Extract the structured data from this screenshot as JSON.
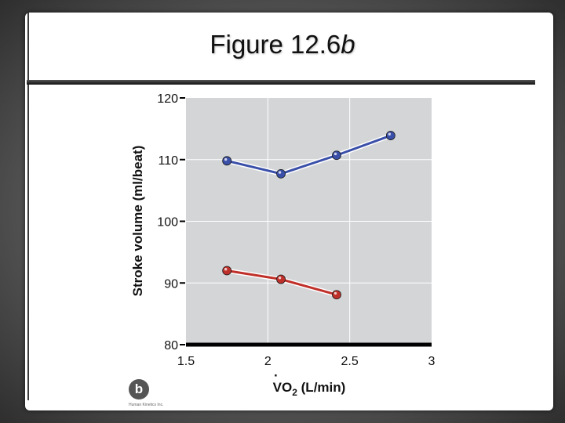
{
  "slide": {
    "title": "Figure 12.6",
    "title_italic": "b"
  },
  "panel": {
    "badge": "b",
    "copyright": "Human Kinetics Inc."
  },
  "chart_data": {
    "type": "line",
    "title": "",
    "xlabel_main": "VO",
    "xlabel_sub": "2",
    "xlabel_rest": " (L/min)",
    "ylabel": "Stroke volume (ml/beat)",
    "xlim": [
      1.5,
      3
    ],
    "ylim": [
      80,
      120
    ],
    "xticks": [
      "1.5",
      "2",
      "2.5",
      "3"
    ],
    "yticks": [
      "80",
      "90",
      "100",
      "110",
      "120"
    ],
    "grid": true,
    "series": [
      {
        "x": [
          1.75,
          2.08,
          2.42,
          2.75
        ],
        "y": [
          109.8,
          107.7,
          110.7,
          113.9
        ],
        "color": "#3a4fa8"
      },
      {
        "x": [
          1.75,
          2.08,
          2.42
        ],
        "y": [
          92.0,
          90.6,
          88.1
        ],
        "color": "#c0302a"
      }
    ]
  }
}
